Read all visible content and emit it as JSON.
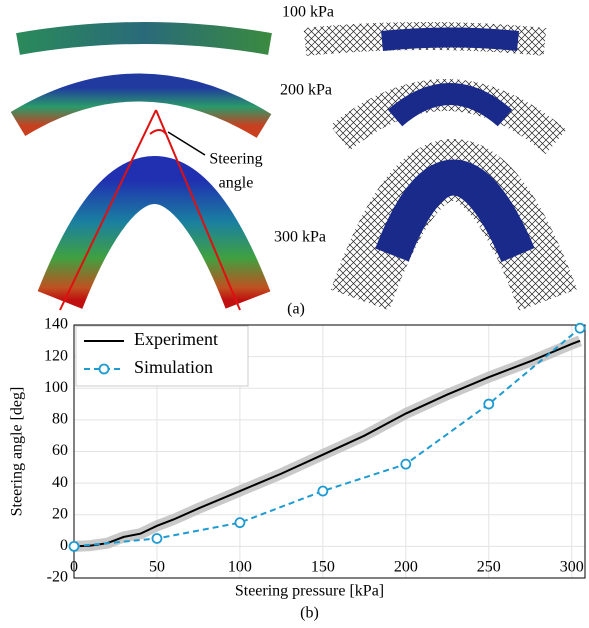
{
  "panel_a": {
    "pressures": [
      "100 kPa",
      "200 kPa",
      "300 kPa"
    ],
    "annotation_lines": [
      "Steering",
      "angle"
    ],
    "caption": "(a)"
  },
  "chart_data": {
    "type": "line",
    "caption": "(b)",
    "x_label": "Steering pressure [kPa]",
    "y_label": "Steering angle [deg]",
    "xlim": [
      0,
      308
    ],
    "ylim": [
      -20,
      140
    ],
    "xticks": [
      0,
      50,
      100,
      150,
      200,
      250,
      300
    ],
    "yticks": [
      -20,
      0,
      20,
      40,
      60,
      80,
      100,
      120,
      140
    ],
    "grid": true,
    "legend": "upper left",
    "series": [
      {
        "name": "Experiment",
        "color": "#000000",
        "style": "solid",
        "x": [
          0,
          10,
          20,
          25,
          30,
          40,
          50,
          60,
          75,
          100,
          125,
          150,
          175,
          200,
          225,
          250,
          275,
          300,
          305
        ],
        "values": [
          0,
          0.5,
          2,
          4,
          6,
          8,
          13,
          17,
          24,
          35,
          46,
          58,
          70,
          84,
          96,
          107,
          117,
          128,
          130
        ]
      },
      {
        "name": "Simulation",
        "color": "#1f9bd1",
        "style": "dashed",
        "marker": "circle",
        "x": [
          0,
          50,
          100,
          150,
          200,
          250,
          305
        ],
        "values": [
          0,
          5,
          15,
          35,
          52,
          90,
          138
        ]
      }
    ]
  }
}
